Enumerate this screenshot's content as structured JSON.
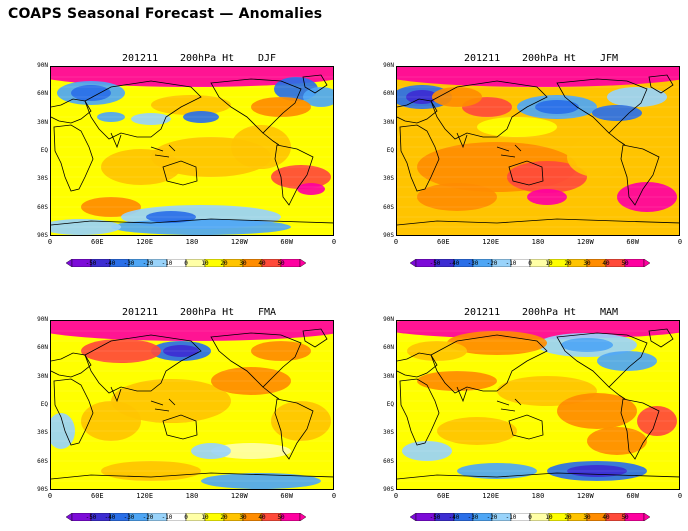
{
  "page": {
    "title": "COAPS Seasonal Forecast — Anomalies"
  },
  "palette": {
    "colors": [
      "#7c0bd8",
      "#3d2dd2",
      "#2a6fe8",
      "#4ea6f5",
      "#99d3fa",
      "#ffffff",
      "#ffffa6",
      "#ffff00",
      "#ffc400",
      "#ff8c00",
      "#ff4a3a",
      "#ff00a0"
    ],
    "ocean": "#ffffff",
    "coast": "#000000"
  },
  "colorbar": {
    "labels": [
      "-50",
      "-40",
      "-30",
      "-20",
      "-10",
      "0",
      "10",
      "20",
      "30",
      "40",
      "50"
    ]
  },
  "axes": {
    "y_labels": [
      "90N",
      "60N",
      "30N",
      "EQ",
      "30S",
      "60S",
      "90S"
    ],
    "x_labels": [
      "0",
      "60E",
      "120E",
      "180",
      "120W",
      "60W",
      "0"
    ]
  },
  "panels": [
    {
      "id": "djf",
      "date": "201211",
      "variable": "200hPa Ht",
      "season": "DJF"
    },
    {
      "id": "jfm",
      "date": "201211",
      "variable": "200hPa Ht",
      "season": "JFM"
    },
    {
      "id": "fma",
      "date": "201211",
      "variable": "200hPa Ht",
      "season": "FMA"
    },
    {
      "id": "mam",
      "date": "201211",
      "variable": "200hPa Ht",
      "season": "MAM"
    }
  ]
}
